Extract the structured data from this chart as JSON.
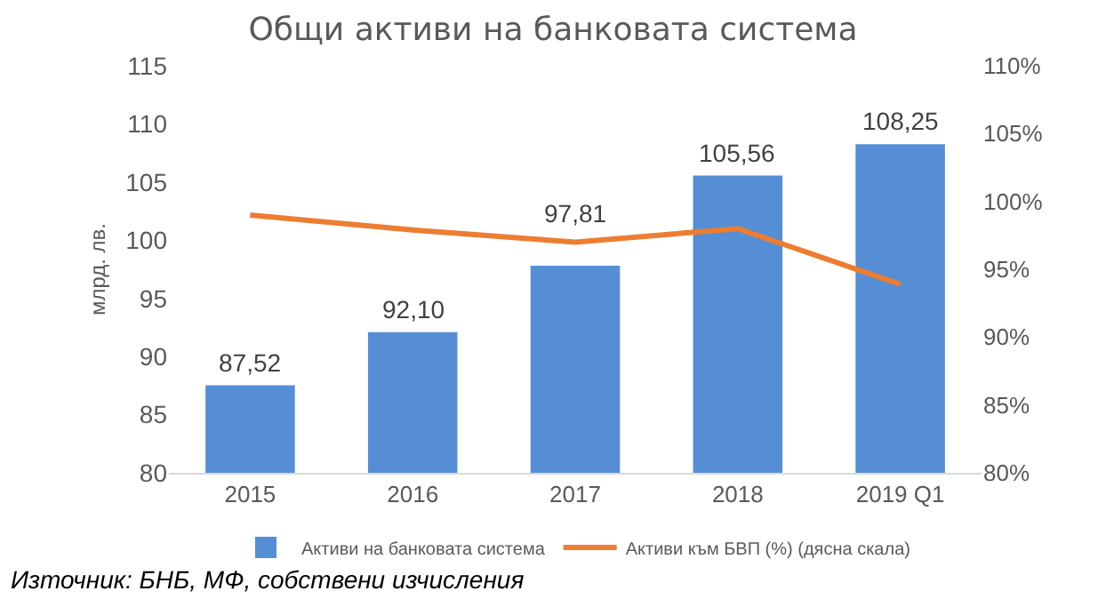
{
  "chart_data": {
    "type": "bar",
    "title": "Общи активи на банковата система",
    "ylabel": "млрд. лв.",
    "categories": [
      "2015",
      "2016",
      "2017",
      "2018",
      "2019 Q1"
    ],
    "series": [
      {
        "name": "Активи на банковата система",
        "color": "#558ed5",
        "values": [
          87.52,
          92.1,
          97.81,
          105.56,
          108.25
        ],
        "value_labels": [
          "87,52",
          "92,10",
          "97,81",
          "105,56",
          "108,25"
        ]
      },
      {
        "name": "Активи към БВП (%) (дясна скала)",
        "type": "line",
        "axis": "y2",
        "color": "#ed7d31",
        "values": [
          99.0,
          97.9,
          97.0,
          98.0,
          93.9
        ]
      }
    ],
    "ylim": [
      80,
      115
    ],
    "yticks": [
      80,
      85,
      90,
      95,
      100,
      105,
      110,
      115
    ],
    "y2lim": [
      80,
      110
    ],
    "y2ticks": [
      {
        "value": 80,
        "label": "80%"
      },
      {
        "value": 85,
        "label": "85%"
      },
      {
        "value": 90,
        "label": "90%"
      },
      {
        "value": 95,
        "label": "95%"
      },
      {
        "value": 100,
        "label": "100%"
      },
      {
        "value": 105,
        "label": "105%"
      },
      {
        "value": 110,
        "label": "110%"
      }
    ],
    "grid": false,
    "legend": "bottom",
    "marker": "none",
    "annotations": [
      "Източник: БНБ, МФ, собствени изчисления"
    ]
  }
}
